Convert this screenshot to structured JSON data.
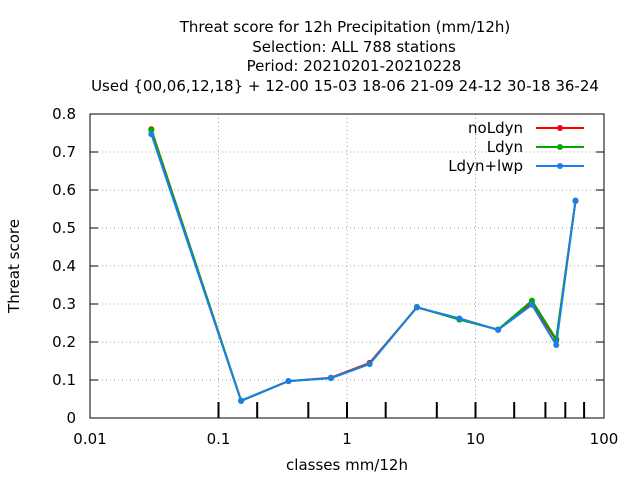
{
  "chart_data": {
    "type": "line",
    "title_lines": [
      "Threat score  for 12h Precipitation (mm/12h)",
      "Selection: ALL    788 stations",
      "Period: 20210201-20210228",
      "Used {00,06,12,18} + 12-00 15-03 18-06 21-09 24-12 30-18 36-24"
    ],
    "xlabel": "classes mm/12h",
    "ylabel": "Threat score",
    "x_scale": "log",
    "xlim": [
      0.01,
      100
    ],
    "ylim": [
      0,
      0.8
    ],
    "x_ticks": [
      0.01,
      0.1,
      1,
      10,
      100
    ],
    "x_tick_labels": [
      "0.01",
      "0.1",
      "1",
      "10",
      "100"
    ],
    "x_minor_ticks": [
      0.1,
      0.2,
      0.5,
      1,
      2,
      5,
      10,
      20,
      35,
      50,
      70
    ],
    "y_ticks": [
      0,
      0.1,
      0.2,
      0.3,
      0.4,
      0.5,
      0.6,
      0.7,
      0.8
    ],
    "y_tick_labels": [
      "0",
      "0.1",
      "0.2",
      "0.3",
      "0.4",
      "0.5",
      "0.6",
      "0.7",
      "0.8"
    ],
    "grid": true,
    "legend_position": "top-right",
    "x": [
      0.03,
      0.15,
      0.35,
      0.75,
      1.5,
      3.5,
      7.5,
      15,
      27.5,
      42.5,
      60
    ],
    "series": [
      {
        "name": "noLdyn",
        "color": "#ff0000",
        "values": [
          0.76,
          0.045,
          0.097,
          0.106,
          0.145,
          0.291,
          0.26,
          0.232,
          0.302,
          0.205,
          0.571
        ]
      },
      {
        "name": "Ldyn",
        "color": "#00aa00",
        "values": [
          0.758,
          0.046,
          0.097,
          0.105,
          0.142,
          0.292,
          0.259,
          0.233,
          0.309,
          0.208,
          0.572
        ]
      },
      {
        "name": "Ldyn+lwp",
        "color": "#1a7fe8",
        "values": [
          0.747,
          0.045,
          0.097,
          0.105,
          0.142,
          0.291,
          0.262,
          0.232,
          0.298,
          0.192,
          0.572
        ]
      }
    ]
  }
}
